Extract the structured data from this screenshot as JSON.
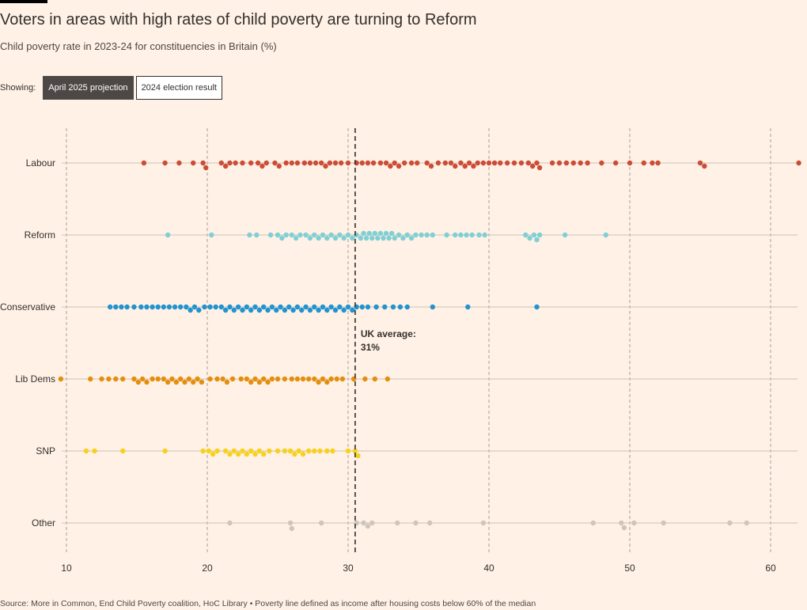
{
  "title": "Voters in areas with high rates of child poverty are turning to Reform",
  "subtitle": "Child poverty rate in 2023-24 for constituencies in Britain (%)",
  "toggle": {
    "label": "Showing:",
    "options": [
      "April 2025 projection",
      "2024 election result"
    ],
    "active_index": 0
  },
  "source": "Source: More in Common, End Child Poverty coalition, HoC Library • Poverty line defined as income after housing costs below 60% of the median",
  "chart_data": {
    "type": "scatter",
    "subtype": "beeswarm",
    "xlim": [
      10,
      62
    ],
    "xticks": [
      10,
      20,
      30,
      40,
      50,
      60
    ],
    "grid": true,
    "reference_line": {
      "value": 30.5,
      "label_line1": "UK average:",
      "label_line2": "31%"
    },
    "series": [
      {
        "name": "Labour",
        "color": "#cc4c36",
        "values": [
          15.5,
          17,
          18,
          19,
          19.7,
          19.9,
          21,
          21.3,
          21.6,
          22,
          22.5,
          23.1,
          23.6,
          23.9,
          24.2,
          24.8,
          25.1,
          25.6,
          26,
          26.4,
          26.9,
          27.3,
          27.7,
          28.1,
          28.4,
          28.7,
          29.1,
          29.5,
          30,
          30.6,
          31,
          31.4,
          31.8,
          32.3,
          32.7,
          33,
          33.3,
          33.6,
          34,
          34.5,
          34.9,
          35.6,
          35.9,
          36.4,
          36.9,
          37.3,
          37.6,
          38,
          38.3,
          38.6,
          38.9,
          39.2,
          39.6,
          40,
          40.4,
          40.8,
          41.3,
          41.8,
          42.3,
          42.8,
          43.1,
          43.4,
          43.6,
          44.5,
          45,
          45.5,
          46,
          46.5,
          47,
          48,
          49,
          50,
          51,
          51.6,
          52,
          55,
          55.3,
          62
        ]
      },
      {
        "name": "Reform",
        "color": "#7fd0d4",
        "values": [
          17.2,
          20.3,
          23,
          23.5,
          24.5,
          25,
          25.3,
          25.6,
          26,
          26.3,
          26.6,
          27,
          27.3,
          27.6,
          27.9,
          28.2,
          28.5,
          28.8,
          29.1,
          29.4,
          29.7,
          30,
          30.3,
          30.6,
          30.9,
          31.1,
          31.3,
          31.5,
          31.7,
          31.9,
          32.1,
          32.3,
          32.5,
          32.7,
          32.9,
          33.1,
          33.3,
          33.6,
          33.9,
          34.2,
          34.5,
          34.8,
          35.2,
          35.6,
          36,
          37,
          37.6,
          38,
          38.4,
          38.8,
          39.3,
          39.7,
          42.6,
          42.9,
          43.2,
          43.4,
          43.6,
          45.4,
          48.3
        ]
      },
      {
        "name": "Conservative",
        "color": "#2193d0",
        "values": [
          13.1,
          13.5,
          13.9,
          14.3,
          14.8,
          15.3,
          15.7,
          16.1,
          16.5,
          16.9,
          17.3,
          17.7,
          18.1,
          18.5,
          18.8,
          19.1,
          19.4,
          19.8,
          20.2,
          20.6,
          21,
          21.3,
          21.6,
          21.9,
          22.2,
          22.5,
          22.8,
          23.1,
          23.4,
          23.7,
          24,
          24.3,
          24.6,
          24.9,
          25.2,
          25.5,
          25.8,
          26.1,
          26.4,
          26.7,
          27,
          27.3,
          27.6,
          27.9,
          28.2,
          28.5,
          28.8,
          29.1,
          29.4,
          29.7,
          30,
          30.3,
          30.6,
          31,
          31.4,
          32,
          32.6,
          33.2,
          33.7,
          34.2,
          36,
          38.5,
          43.4
        ]
      },
      {
        "name": "Lib Dems",
        "color": "#e48e0e",
        "values": [
          9.6,
          11.7,
          12.5,
          13,
          13.5,
          14,
          14.8,
          15.1,
          15.4,
          15.7,
          16.1,
          16.5,
          16.9,
          17.2,
          17.5,
          17.8,
          18.1,
          18.4,
          18.7,
          19,
          19.3,
          19.6,
          20.2,
          20.7,
          21.1,
          21.4,
          21.8,
          22.4,
          22.8,
          23.1,
          23.4,
          23.7,
          24,
          24.3,
          24.6,
          25,
          25.5,
          26,
          26.4,
          26.8,
          27.2,
          27.6,
          27.9,
          28.2,
          28.5,
          28.8,
          29.2,
          29.6,
          30.4,
          31.2,
          31.9,
          32.8
        ]
      },
      {
        "name": "SNP",
        "color": "#f7d11c",
        "values": [
          11.4,
          12,
          14,
          17,
          19.7,
          20.1,
          20.4,
          20.7,
          21.3,
          21.6,
          21.9,
          22.2,
          22.5,
          22.8,
          23.1,
          23.4,
          23.7,
          24,
          24.4,
          25,
          25.5,
          25.9,
          26.2,
          26.5,
          26.8,
          27.2,
          27.6,
          28,
          28.5,
          28.9,
          30,
          30.5,
          30.7
        ]
      },
      {
        "name": "Other",
        "color": "#cec6b9",
        "values": [
          21.6,
          25.9,
          26,
          28.1,
          30.6,
          31.1,
          31.4,
          31.7,
          33.5,
          34.8,
          35.8,
          39.6,
          47.4,
          49.4,
          49.6,
          50.3,
          52.4,
          57.1,
          58.3
        ]
      }
    ]
  }
}
